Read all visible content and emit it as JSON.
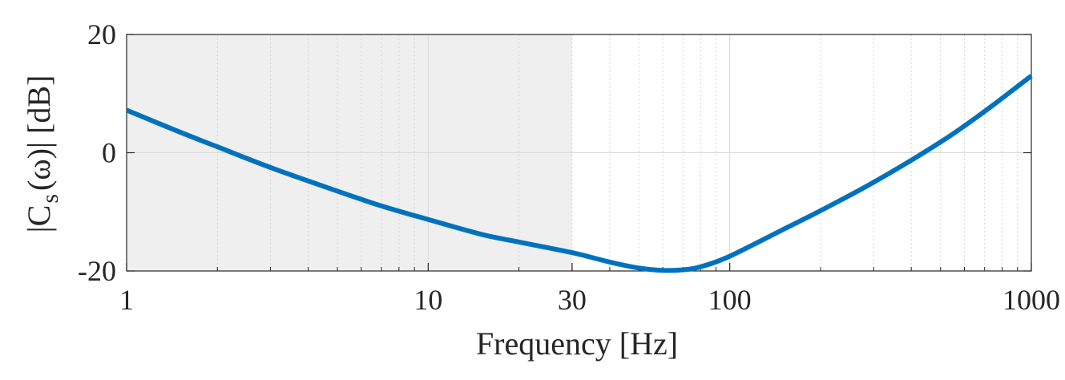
{
  "chart_data": {
    "type": "line",
    "xscale": "log",
    "xlim": [
      1,
      1000
    ],
    "ylim": [
      -20,
      20
    ],
    "xticks": [
      1,
      10,
      30,
      100,
      1000
    ],
    "xtick_labels": [
      "1",
      "10",
      "30",
      "100",
      "1000"
    ],
    "yticks": [
      -20,
      0,
      20
    ],
    "ytick_labels": [
      "-20",
      "0",
      "20"
    ],
    "xlabel": "Frequency [Hz]",
    "ylabel_main": "|C",
    "ylabel_sub": "s",
    "ylabel_tail": "(ω)| [dB]",
    "grid": true,
    "shaded_region": {
      "x_range": [
        1,
        30
      ],
      "color": "#efefef"
    },
    "series": [
      {
        "color": "#0072bd",
        "x": [
          1,
          1.5,
          2,
          3,
          5,
          7,
          10,
          15,
          20,
          30,
          40,
          50,
          60,
          70,
          80,
          100,
          150,
          200,
          300,
          500,
          700,
          1000
        ],
        "y": [
          7.2,
          3.5,
          1.0,
          -2.5,
          -6.5,
          -9.0,
          -11.3,
          -13.8,
          -15.1,
          -16.9,
          -18.5,
          -19.5,
          -19.9,
          -19.8,
          -19.3,
          -17.5,
          -13.0,
          -9.8,
          -5.0,
          1.8,
          7.0,
          13.0
        ]
      }
    ]
  }
}
